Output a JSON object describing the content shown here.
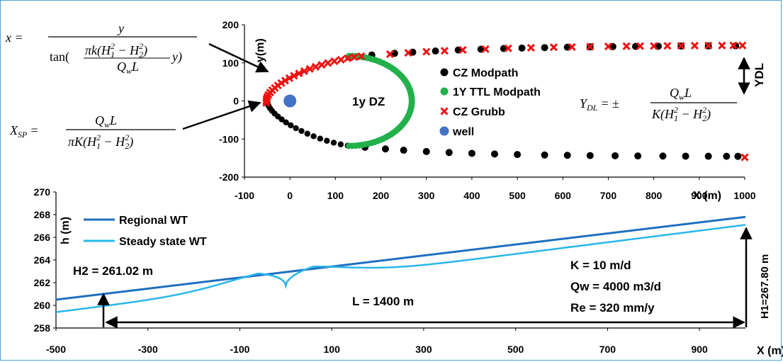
{
  "chart_data": [
    {
      "type": "scatter",
      "xlabel": "X (m)",
      "ylabel": "y(m)",
      "xlim": [
        -100,
        1000
      ],
      "ylim": [
        -200,
        200
      ],
      "xticks": [
        "-100",
        "0",
        "100",
        "200",
        "300",
        "400",
        "500",
        "600",
        "700",
        "800",
        "900",
        "1000"
      ],
      "yticks": [
        "200",
        "100",
        "0",
        "-100",
        "-200"
      ],
      "region_label": "1y DZ",
      "legend": {
        "placement": "center-right",
        "entries": [
          {
            "label": "CZ Modpath",
            "color": "#000000",
            "marker": "circle"
          },
          {
            "label": "1Y TTL Modpath",
            "color": "#22b04b",
            "marker": "circle"
          },
          {
            "label": "CZ Grubb",
            "color": "#ee1111",
            "marker": "cross"
          },
          {
            "label": "well",
            "color": "#4472c4",
            "marker": "circle"
          }
        ]
      },
      "ydl_label": "YDL",
      "well": {
        "x": 0,
        "y": 0
      }
    },
    {
      "type": "line",
      "xlabel": "X (m)",
      "ylabel": "h (m)",
      "xlim": [
        -500,
        1000
      ],
      "ylim": [
        258,
        270
      ],
      "xticks": [
        "-500",
        "-300",
        "-100",
        "100",
        "300",
        "500",
        "700",
        "900"
      ],
      "yticks": [
        "270",
        "268",
        "266",
        "264",
        "262",
        "260",
        "258"
      ],
      "series": [
        {
          "name": "Regional WT",
          "color": "#1f6fc0",
          "points": [
            [
              -500,
              260.5
            ],
            [
              1000,
              267.8
            ]
          ]
        },
        {
          "name": "Steady state WT",
          "color": "#29b6ea"
        }
      ],
      "annotations": {
        "h2": "H2 = 261.02 m",
        "h1": "H1=267.80 m",
        "L": "L = 1400 m",
        "K": "K = 10 m/d",
        "Qw": "Qw = 4000 m3/d",
        "Re": "Re = 320 mm/y"
      }
    }
  ],
  "equations": {
    "x_eq": {
      "lhs": "x =",
      "num": "y",
      "den_fn": "tan(",
      "den_frac_num": "πk(H",
      "den_frac_num_sub1": "1",
      "den_frac_num_mid": " − H",
      "den_frac_num_sub2": "2",
      "den_frac_num_end": ")",
      "den_frac_den": "Q",
      "den_frac_den_sub": "w",
      "den_frac_den_end": "L",
      "den_tail": "y)"
    },
    "xsp_eq": {
      "lhs": "X",
      "lhs_sub": "SP",
      "eq": "=",
      "num": "Q",
      "num_sub": "w",
      "num_end": "L",
      "den": "πK(H",
      "den_sub1": "1",
      "den_mid": " − H",
      "den_sub2": "2",
      "den_end": ")"
    },
    "ydl_eq": {
      "lhs": "Y",
      "lhs_sub": "DL",
      "eq": "= ±",
      "num": "Q",
      "num_sub": "w",
      "num_end": "L",
      "den": "K(H",
      "den_sub1": "1",
      "den_mid": " − H",
      "den_sub2": "2",
      "den_end": ")"
    },
    "sq": "2"
  }
}
